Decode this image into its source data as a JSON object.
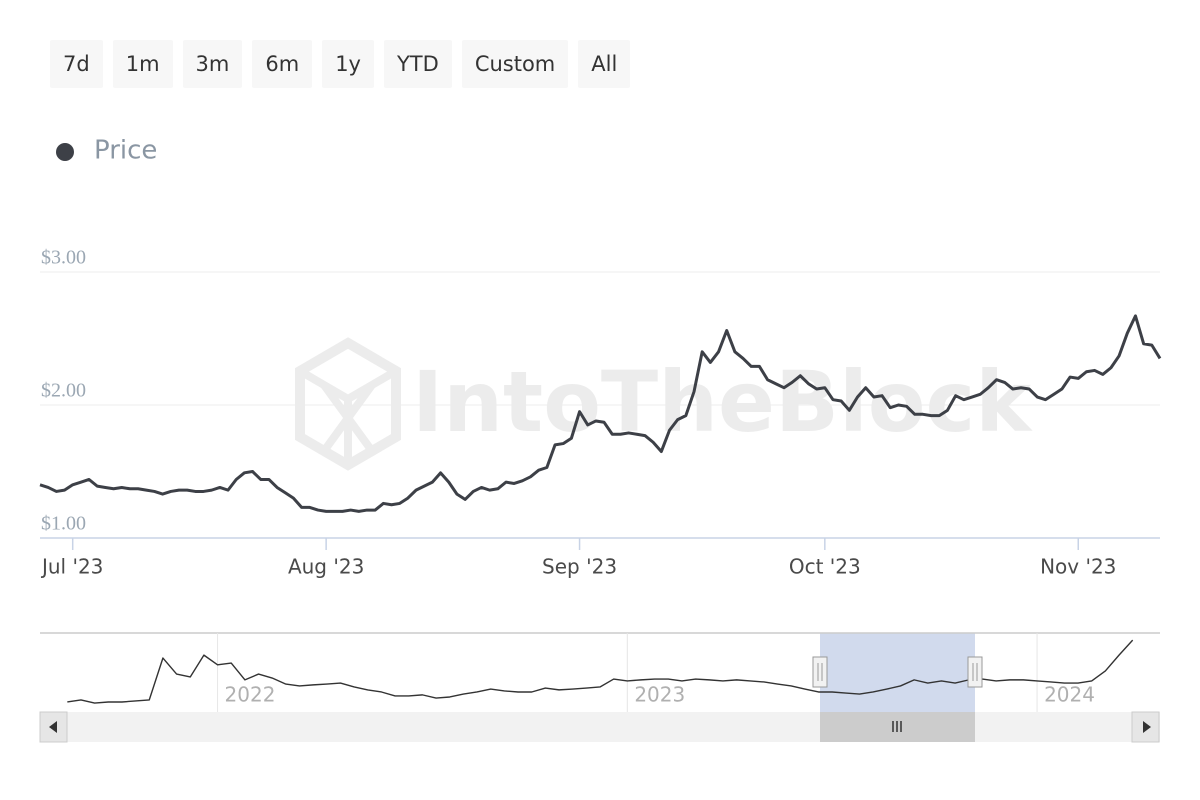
{
  "range_buttons": [
    "7d",
    "1m",
    "3m",
    "6m",
    "1y",
    "YTD",
    "Custom",
    "All"
  ],
  "chart_data": [
    {
      "type": "line",
      "watermark": "IntoTheBlock",
      "categories": [
        null,
        null,
        null,
        null,
        "Jul '23",
        null,
        null,
        null,
        null,
        null,
        null,
        null,
        null,
        null,
        null,
        null,
        null,
        null,
        null,
        null,
        null,
        null,
        null,
        null,
        null,
        null,
        null,
        null,
        null,
        null,
        null,
        null,
        null,
        null,
        null,
        "Aug '23",
        null,
        null,
        null,
        null,
        null,
        null,
        null,
        null,
        null,
        null,
        null,
        null,
        null,
        null,
        null,
        null,
        null,
        null,
        null,
        null,
        null,
        null,
        null,
        null,
        null,
        null,
        null,
        null,
        null,
        null,
        "Sep '23",
        null,
        null,
        null,
        null,
        null,
        null,
        null,
        null,
        null,
        null,
        null,
        null,
        null,
        null,
        null,
        null,
        null,
        null,
        null,
        null,
        null,
        null,
        null,
        null,
        null,
        null,
        null,
        null,
        null,
        "Oct '23",
        null,
        null,
        null,
        null,
        null,
        null,
        null,
        null,
        null,
        null,
        null,
        null,
        null,
        null,
        null,
        null,
        null,
        null,
        null,
        null,
        null,
        null,
        null,
        null,
        null,
        null,
        null,
        null,
        null,
        null,
        "Nov '23",
        null,
        null,
        null,
        null,
        null,
        null,
        null,
        null,
        null,
        null
      ],
      "series": [
        {
          "name": "Price",
          "color": "#3d4047",
          "values": [
            1.4,
            1.38,
            1.35,
            1.36,
            1.4,
            1.42,
            1.44,
            1.39,
            1.38,
            1.37,
            1.38,
            1.37,
            1.37,
            1.36,
            1.35,
            1.33,
            1.35,
            1.36,
            1.36,
            1.35,
            1.35,
            1.36,
            1.38,
            1.36,
            1.44,
            1.49,
            1.5,
            1.44,
            1.44,
            1.38,
            1.34,
            1.3,
            1.23,
            1.23,
            1.21,
            1.2,
            1.2,
            1.2,
            1.21,
            1.2,
            1.21,
            1.21,
            1.26,
            1.25,
            1.26,
            1.3,
            1.36,
            1.39,
            1.42,
            1.49,
            1.42,
            1.33,
            1.29,
            1.35,
            1.38,
            1.36,
            1.37,
            1.42,
            1.41,
            1.43,
            1.46,
            1.51,
            1.53,
            1.7,
            1.71,
            1.75,
            1.95,
            1.85,
            1.88,
            1.87,
            1.78,
            1.78,
            1.79,
            1.78,
            1.77,
            1.72,
            1.65,
            1.81,
            1.89,
            1.92,
            2.1,
            2.4,
            2.32,
            2.4,
            2.56,
            2.4,
            2.35,
            2.29,
            2.29,
            2.19,
            2.16,
            2.13,
            2.17,
            2.22,
            2.16,
            2.12,
            2.13,
            2.04,
            2.03,
            1.96,
            2.06,
            2.13,
            2.06,
            2.07,
            1.98,
            2.0,
            1.99,
            1.93,
            1.93,
            1.92,
            1.92,
            1.96,
            2.07,
            2.04,
            2.06,
            2.08,
            2.13,
            2.19,
            2.17,
            2.12,
            2.13,
            2.12,
            2.06,
            2.04,
            2.08,
            2.12,
            2.21,
            2.2,
            2.25,
            2.26,
            2.23,
            2.28,
            2.37,
            2.54,
            2.67,
            2.46,
            2.45,
            2.35
          ]
        }
      ],
      "ylim": [
        1,
        3.5
      ],
      "yticks": [
        {
          "value": 1,
          "label": "$1.00"
        },
        {
          "value": 2,
          "label": "$2.00"
        },
        {
          "value": 3,
          "label": "$3.00"
        }
      ],
      "grid": true,
      "legend": "top-left"
    },
    {
      "type": "line",
      "categories": [
        null,
        null,
        null,
        null,
        null,
        null,
        null,
        null,
        null,
        null,
        null,
        null,
        null,
        "2022",
        null,
        null,
        null,
        null,
        null,
        null,
        null,
        null,
        null,
        null,
        null,
        null,
        null,
        null,
        null,
        null,
        null,
        null,
        null,
        null,
        null,
        null,
        null,
        null,
        null,
        null,
        null,
        null,
        null,
        "2023",
        null,
        null,
        null,
        null,
        null,
        null,
        null,
        null,
        null,
        null,
        null,
        null,
        null,
        null,
        null,
        null,
        null,
        null,
        null,
        null,
        null,
        null,
        null,
        null,
        null,
        null,
        null,
        null,
        null,
        "2024",
        null,
        null,
        null,
        null,
        null,
        null,
        null,
        null,
        null
      ],
      "series": [
        {
          "color": "#333333",
          "values": [
            null,
            null,
            0.38,
            0.46,
            0.34,
            0.38,
            0.38,
            0.42,
            0.46,
            2.05,
            1.44,
            1.33,
            2.16,
            1.79,
            1.86,
            1.22,
            1.44,
            1.29,
            1.06,
            0.99,
            1.03,
            1.06,
            1.1,
            0.95,
            0.84,
            0.76,
            0.61,
            0.61,
            0.65,
            0.53,
            0.57,
            0.68,
            0.76,
            0.87,
            0.8,
            0.76,
            0.76,
            0.91,
            0.84,
            0.87,
            0.91,
            0.95,
            1.25,
            1.18,
            1.22,
            1.25,
            1.25,
            1.18,
            1.25,
            1.22,
            1.18,
            1.22,
            1.18,
            1.14,
            1.06,
            0.99,
            0.87,
            0.76,
            0.76,
            0.72,
            0.68,
            0.76,
            0.87,
            0.99,
            1.22,
            1.1,
            1.18,
            1.1,
            1.22,
            1.25,
            1.18,
            1.22,
            1.22,
            1.18,
            1.14,
            1.1,
            1.1,
            1.18,
            1.56,
            2.16,
            2.73,
            null,
            null
          ]
        }
      ],
      "ylim": [
        0,
        3
      ]
    }
  ]
}
